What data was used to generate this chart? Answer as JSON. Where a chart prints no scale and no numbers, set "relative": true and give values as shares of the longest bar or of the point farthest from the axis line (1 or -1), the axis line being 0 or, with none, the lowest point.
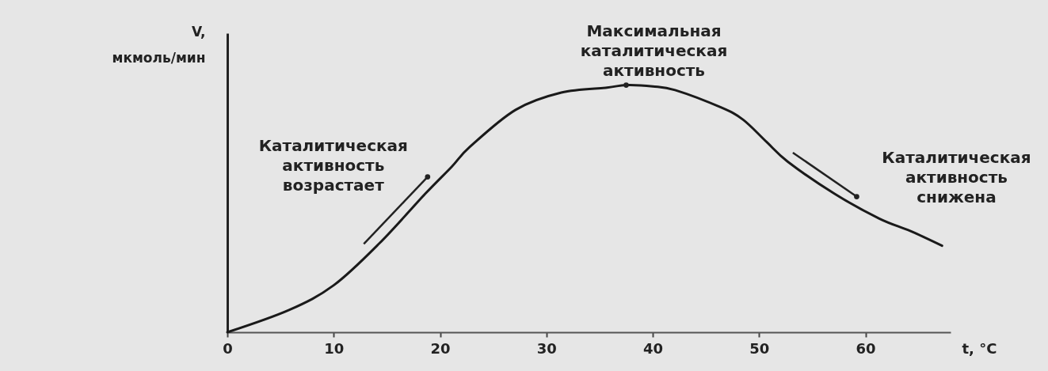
{
  "chart_data": {
    "type": "line",
    "relative": true,
    "xlabel": "t, °C",
    "ylabel": "V, мкмоль/мин",
    "tick_labels": "x",
    "xlim": [
      0,
      68
    ],
    "xticks": [
      0,
      10,
      20,
      30,
      40,
      50,
      60
    ],
    "x": [
      0,
      5.8,
      10,
      14.3,
      18.6,
      21.1,
      22.8,
      27.1,
      31.4,
      35.7,
      37.5,
      40,
      42.1,
      46.4,
      48.5,
      50.7,
      52.7,
      57.1,
      61.3,
      64.2,
      67.2
    ],
    "series": [
      {
        "color": "#1a1a1a",
        "values": [
          0,
          0.09,
          0.19,
          0.36,
          0.56,
          0.67,
          0.75,
          0.9,
          0.97,
          0.99,
          1,
          0.995,
          0.98,
          0.91,
          0.86,
          0.77,
          0.69,
          0.56,
          0.46,
          0.41,
          0.35
        ]
      }
    ],
    "annotations": [
      {
        "text": "Каталитическая активность возрастает",
        "x": 19.5,
        "y": 0.6
      },
      {
        "text": "Максимальная каталитическая активность",
        "x": 37.5,
        "y": 1
      },
      {
        "text": "Каталитическая активность снижена",
        "x": 58.5,
        "y": 0.52
      }
    ]
  }
}
